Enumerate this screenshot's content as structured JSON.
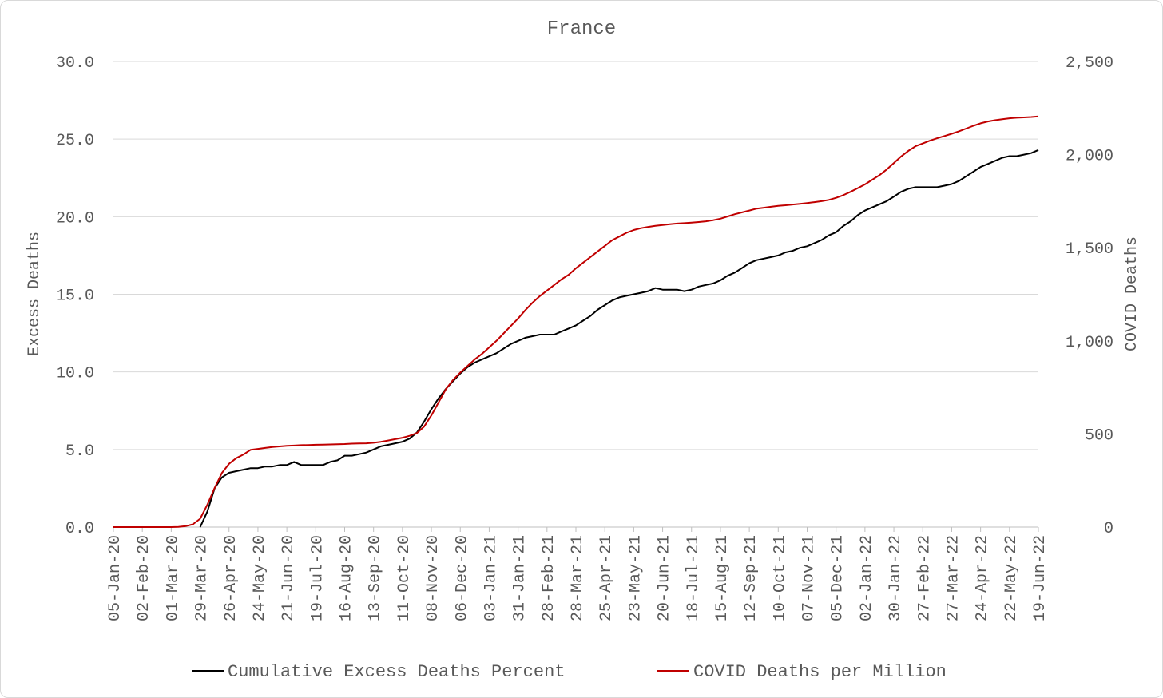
{
  "chart_data": {
    "type": "line",
    "title": "France",
    "left_axis": {
      "label": "Excess Deaths",
      "range": [
        0,
        30
      ],
      "ticks": [
        "0.0",
        "5.0",
        "10.0",
        "15.0",
        "20.0",
        "25.0",
        "30.0"
      ]
    },
    "right_axis": {
      "label": "COVID Deaths",
      "range": [
        0,
        2500
      ],
      "ticks": [
        "0",
        "500",
        "1,000",
        "1,500",
        "2,000",
        "2,500"
      ]
    },
    "x_tick_labels": [
      "05-Jan-20",
      "02-Feb-20",
      "01-Mar-20",
      "29-Mar-20",
      "26-Apr-20",
      "24-May-20",
      "21-Jun-20",
      "19-Jul-20",
      "16-Aug-20",
      "13-Sep-20",
      "11-Oct-20",
      "08-Nov-20",
      "06-Dec-20",
      "03-Jan-21",
      "31-Jan-21",
      "28-Feb-21",
      "28-Mar-21",
      "25-Apr-21",
      "23-May-21",
      "20-Jun-21",
      "18-Jul-21",
      "15-Aug-21",
      "12-Sep-21",
      "10-Oct-21",
      "07-Nov-21",
      "05-Dec-21",
      "02-Jan-22",
      "30-Jan-22",
      "27-Feb-22",
      "27-Mar-22",
      "24-Apr-22",
      "22-May-22",
      "19-Jun-22"
    ],
    "grid": "horizontal",
    "legend_position": "bottom",
    "series": [
      {
        "name": "Cumulative Excess Deaths Percent",
        "axis": "left",
        "color": "#000000",
        "points": [
          [
            "29-Mar-20",
            0.0
          ],
          [
            "05-Apr-20",
            1.0
          ],
          [
            "12-Apr-20",
            2.5
          ],
          [
            "19-Apr-20",
            3.2
          ],
          [
            "26-Apr-20",
            3.5
          ],
          [
            "03-May-20",
            3.6
          ],
          [
            "10-May-20",
            3.7
          ],
          [
            "17-May-20",
            3.8
          ],
          [
            "24-May-20",
            3.8
          ],
          [
            "31-May-20",
            3.9
          ],
          [
            "07-Jun-20",
            3.9
          ],
          [
            "14-Jun-20",
            4.0
          ],
          [
            "21-Jun-20",
            4.0
          ],
          [
            "28-Jun-20",
            4.2
          ],
          [
            "05-Jul-20",
            4.0
          ],
          [
            "12-Jul-20",
            4.0
          ],
          [
            "19-Jul-20",
            4.0
          ],
          [
            "26-Jul-20",
            4.0
          ],
          [
            "02-Aug-20",
            4.2
          ],
          [
            "09-Aug-20",
            4.3
          ],
          [
            "16-Aug-20",
            4.6
          ],
          [
            "23-Aug-20",
            4.6
          ],
          [
            "30-Aug-20",
            4.7
          ],
          [
            "06-Sep-20",
            4.8
          ],
          [
            "13-Sep-20",
            5.0
          ],
          [
            "20-Sep-20",
            5.2
          ],
          [
            "27-Sep-20",
            5.3
          ],
          [
            "04-Oct-20",
            5.4
          ],
          [
            "11-Oct-20",
            5.5
          ],
          [
            "18-Oct-20",
            5.7
          ],
          [
            "25-Oct-20",
            6.1
          ],
          [
            "01-Nov-20",
            6.8
          ],
          [
            "08-Nov-20",
            7.6
          ],
          [
            "15-Nov-20",
            8.3
          ],
          [
            "22-Nov-20",
            8.9
          ],
          [
            "29-Nov-20",
            9.4
          ],
          [
            "06-Dec-20",
            9.9
          ],
          [
            "13-Dec-20",
            10.3
          ],
          [
            "20-Dec-20",
            10.6
          ],
          [
            "27-Dec-20",
            10.8
          ],
          [
            "03-Jan-21",
            11.0
          ],
          [
            "10-Jan-21",
            11.2
          ],
          [
            "17-Jan-21",
            11.5
          ],
          [
            "24-Jan-21",
            11.8
          ],
          [
            "31-Jan-21",
            12.0
          ],
          [
            "07-Feb-21",
            12.2
          ],
          [
            "14-Feb-21",
            12.3
          ],
          [
            "21-Feb-21",
            12.4
          ],
          [
            "28-Feb-21",
            12.4
          ],
          [
            "07-Mar-21",
            12.4
          ],
          [
            "14-Mar-21",
            12.6
          ],
          [
            "21-Mar-21",
            12.8
          ],
          [
            "28-Mar-21",
            13.0
          ],
          [
            "04-Apr-21",
            13.3
          ],
          [
            "11-Apr-21",
            13.6
          ],
          [
            "18-Apr-21",
            14.0
          ],
          [
            "25-Apr-21",
            14.3
          ],
          [
            "02-May-21",
            14.6
          ],
          [
            "09-May-21",
            14.8
          ],
          [
            "16-May-21",
            14.9
          ],
          [
            "23-May-21",
            15.0
          ],
          [
            "30-May-21",
            15.1
          ],
          [
            "06-Jun-21",
            15.2
          ],
          [
            "13-Jun-21",
            15.4
          ],
          [
            "20-Jun-21",
            15.3
          ],
          [
            "27-Jun-21",
            15.3
          ],
          [
            "04-Jul-21",
            15.3
          ],
          [
            "11-Jul-21",
            15.2
          ],
          [
            "18-Jul-21",
            15.3
          ],
          [
            "25-Jul-21",
            15.5
          ],
          [
            "01-Aug-21",
            15.6
          ],
          [
            "08-Aug-21",
            15.7
          ],
          [
            "15-Aug-21",
            15.9
          ],
          [
            "22-Aug-21",
            16.2
          ],
          [
            "29-Aug-21",
            16.4
          ],
          [
            "05-Sep-21",
            16.7
          ],
          [
            "12-Sep-21",
            17.0
          ],
          [
            "19-Sep-21",
            17.2
          ],
          [
            "26-Sep-21",
            17.3
          ],
          [
            "03-Oct-21",
            17.4
          ],
          [
            "10-Oct-21",
            17.5
          ],
          [
            "17-Oct-21",
            17.7
          ],
          [
            "24-Oct-21",
            17.8
          ],
          [
            "31-Oct-21",
            18.0
          ],
          [
            "07-Nov-21",
            18.1
          ],
          [
            "14-Nov-21",
            18.3
          ],
          [
            "21-Nov-21",
            18.5
          ],
          [
            "28-Nov-21",
            18.8
          ],
          [
            "05-Dec-21",
            19.0
          ],
          [
            "12-Dec-21",
            19.4
          ],
          [
            "19-Dec-21",
            19.7
          ],
          [
            "26-Dec-21",
            20.1
          ],
          [
            "02-Jan-22",
            20.4
          ],
          [
            "09-Jan-22",
            20.6
          ],
          [
            "16-Jan-22",
            20.8
          ],
          [
            "23-Jan-22",
            21.0
          ],
          [
            "30-Jan-22",
            21.3
          ],
          [
            "06-Feb-22",
            21.6
          ],
          [
            "13-Feb-22",
            21.8
          ],
          [
            "20-Feb-22",
            21.9
          ],
          [
            "27-Feb-22",
            21.9
          ],
          [
            "06-Mar-22",
            21.9
          ],
          [
            "13-Mar-22",
            21.9
          ],
          [
            "20-Mar-22",
            22.0
          ],
          [
            "27-Mar-22",
            22.1
          ],
          [
            "03-Apr-22",
            22.3
          ],
          [
            "10-Apr-22",
            22.6
          ],
          [
            "17-Apr-22",
            22.9
          ],
          [
            "24-Apr-22",
            23.2
          ],
          [
            "01-May-22",
            23.4
          ],
          [
            "08-May-22",
            23.6
          ],
          [
            "15-May-22",
            23.8
          ],
          [
            "22-May-22",
            23.9
          ],
          [
            "29-May-22",
            23.9
          ],
          [
            "05-Jun-22",
            24.0
          ],
          [
            "12-Jun-22",
            24.1
          ],
          [
            "19-Jun-22",
            24.3
          ]
        ]
      },
      {
        "name": "COVID Deaths per Million",
        "axis": "right",
        "color": "#c00000",
        "points": [
          [
            "05-Jan-20",
            0
          ],
          [
            "12-Jan-20",
            0
          ],
          [
            "19-Jan-20",
            0
          ],
          [
            "26-Jan-20",
            0
          ],
          [
            "02-Feb-20",
            0
          ],
          [
            "09-Feb-20",
            0
          ],
          [
            "16-Feb-20",
            0
          ],
          [
            "23-Feb-20",
            0
          ],
          [
            "01-Mar-20",
            0
          ],
          [
            "08-Mar-20",
            1
          ],
          [
            "15-Mar-20",
            5
          ],
          [
            "22-Mar-20",
            15
          ],
          [
            "29-Mar-20",
            45
          ],
          [
            "05-Apr-20",
            120
          ],
          [
            "12-Apr-20",
            210
          ],
          [
            "19-Apr-20",
            290
          ],
          [
            "26-Apr-20",
            340
          ],
          [
            "03-May-20",
            370
          ],
          [
            "10-May-20",
            390
          ],
          [
            "17-May-20",
            415
          ],
          [
            "24-May-20",
            420
          ],
          [
            "31-May-20",
            425
          ],
          [
            "07-Jun-20",
            430
          ],
          [
            "14-Jun-20",
            433
          ],
          [
            "21-Jun-20",
            436
          ],
          [
            "28-Jun-20",
            438
          ],
          [
            "05-Jul-20",
            440
          ],
          [
            "12-Jul-20",
            441
          ],
          [
            "19-Jul-20",
            442
          ],
          [
            "26-Jul-20",
            443
          ],
          [
            "02-Aug-20",
            444
          ],
          [
            "09-Aug-20",
            445
          ],
          [
            "16-Aug-20",
            446
          ],
          [
            "23-Aug-20",
            448
          ],
          [
            "30-Aug-20",
            449
          ],
          [
            "06-Sep-20",
            450
          ],
          [
            "13-Sep-20",
            453
          ],
          [
            "20-Sep-20",
            458
          ],
          [
            "27-Sep-20",
            465
          ],
          [
            "04-Oct-20",
            472
          ],
          [
            "11-Oct-20",
            480
          ],
          [
            "18-Oct-20",
            490
          ],
          [
            "25-Oct-20",
            505
          ],
          [
            "01-Nov-20",
            540
          ],
          [
            "08-Nov-20",
            600
          ],
          [
            "15-Nov-20",
            670
          ],
          [
            "22-Nov-20",
            740
          ],
          [
            "29-Nov-20",
            790
          ],
          [
            "06-Dec-20",
            830
          ],
          [
            "13-Dec-20",
            865
          ],
          [
            "20-Dec-20",
            900
          ],
          [
            "27-Dec-20",
            930
          ],
          [
            "03-Jan-21",
            965
          ],
          [
            "10-Jan-21",
            1000
          ],
          [
            "17-Jan-21",
            1040
          ],
          [
            "24-Jan-21",
            1080
          ],
          [
            "31-Jan-21",
            1120
          ],
          [
            "07-Feb-21",
            1165
          ],
          [
            "14-Feb-21",
            1205
          ],
          [
            "21-Feb-21",
            1240
          ],
          [
            "28-Feb-21",
            1270
          ],
          [
            "07-Mar-21",
            1300
          ],
          [
            "14-Mar-21",
            1330
          ],
          [
            "21-Mar-21",
            1355
          ],
          [
            "28-Mar-21",
            1390
          ],
          [
            "04-Apr-21",
            1420
          ],
          [
            "11-Apr-21",
            1450
          ],
          [
            "18-Apr-21",
            1480
          ],
          [
            "25-Apr-21",
            1510
          ],
          [
            "02-May-21",
            1540
          ],
          [
            "09-May-21",
            1560
          ],
          [
            "16-May-21",
            1580
          ],
          [
            "23-May-21",
            1595
          ],
          [
            "30-May-21",
            1605
          ],
          [
            "06-Jun-21",
            1612
          ],
          [
            "13-Jun-21",
            1618
          ],
          [
            "20-Jun-21",
            1622
          ],
          [
            "27-Jun-21",
            1626
          ],
          [
            "04-Jul-21",
            1630
          ],
          [
            "11-Jul-21",
            1632
          ],
          [
            "18-Jul-21",
            1635
          ],
          [
            "25-Jul-21",
            1638
          ],
          [
            "01-Aug-21",
            1642
          ],
          [
            "08-Aug-21",
            1648
          ],
          [
            "15-Aug-21",
            1656
          ],
          [
            "22-Aug-21",
            1668
          ],
          [
            "29-Aug-21",
            1680
          ],
          [
            "05-Sep-21",
            1690
          ],
          [
            "12-Sep-21",
            1700
          ],
          [
            "19-Sep-21",
            1710
          ],
          [
            "26-Sep-21",
            1715
          ],
          [
            "03-Oct-21",
            1720
          ],
          [
            "10-Oct-21",
            1725
          ],
          [
            "17-Oct-21",
            1728
          ],
          [
            "24-Oct-21",
            1732
          ],
          [
            "31-Oct-21",
            1736
          ],
          [
            "07-Nov-21",
            1740
          ],
          [
            "14-Nov-21",
            1745
          ],
          [
            "21-Nov-21",
            1750
          ],
          [
            "28-Nov-21",
            1757
          ],
          [
            "05-Dec-21",
            1768
          ],
          [
            "12-Dec-21",
            1782
          ],
          [
            "19-Dec-21",
            1800
          ],
          [
            "26-Dec-21",
            1820
          ],
          [
            "02-Jan-22",
            1840
          ],
          [
            "09-Jan-22",
            1865
          ],
          [
            "16-Jan-22",
            1890
          ],
          [
            "23-Jan-22",
            1920
          ],
          [
            "30-Jan-22",
            1955
          ],
          [
            "06-Feb-22",
            1990
          ],
          [
            "13-Feb-22",
            2020
          ],
          [
            "20-Feb-22",
            2045
          ],
          [
            "27-Feb-22",
            2060
          ],
          [
            "06-Mar-22",
            2075
          ],
          [
            "13-Mar-22",
            2088
          ],
          [
            "20-Mar-22",
            2100
          ],
          [
            "27-Mar-22",
            2112
          ],
          [
            "03-Apr-22",
            2125
          ],
          [
            "10-Apr-22",
            2140
          ],
          [
            "17-Apr-22",
            2155
          ],
          [
            "24-Apr-22",
            2168
          ],
          [
            "01-May-22",
            2178
          ],
          [
            "08-May-22",
            2185
          ],
          [
            "15-May-22",
            2190
          ],
          [
            "22-May-22",
            2195
          ],
          [
            "29-May-22",
            2198
          ],
          [
            "05-Jun-22",
            2200
          ],
          [
            "12-Jun-22",
            2202
          ],
          [
            "19-Jun-22",
            2205
          ]
        ]
      }
    ]
  }
}
